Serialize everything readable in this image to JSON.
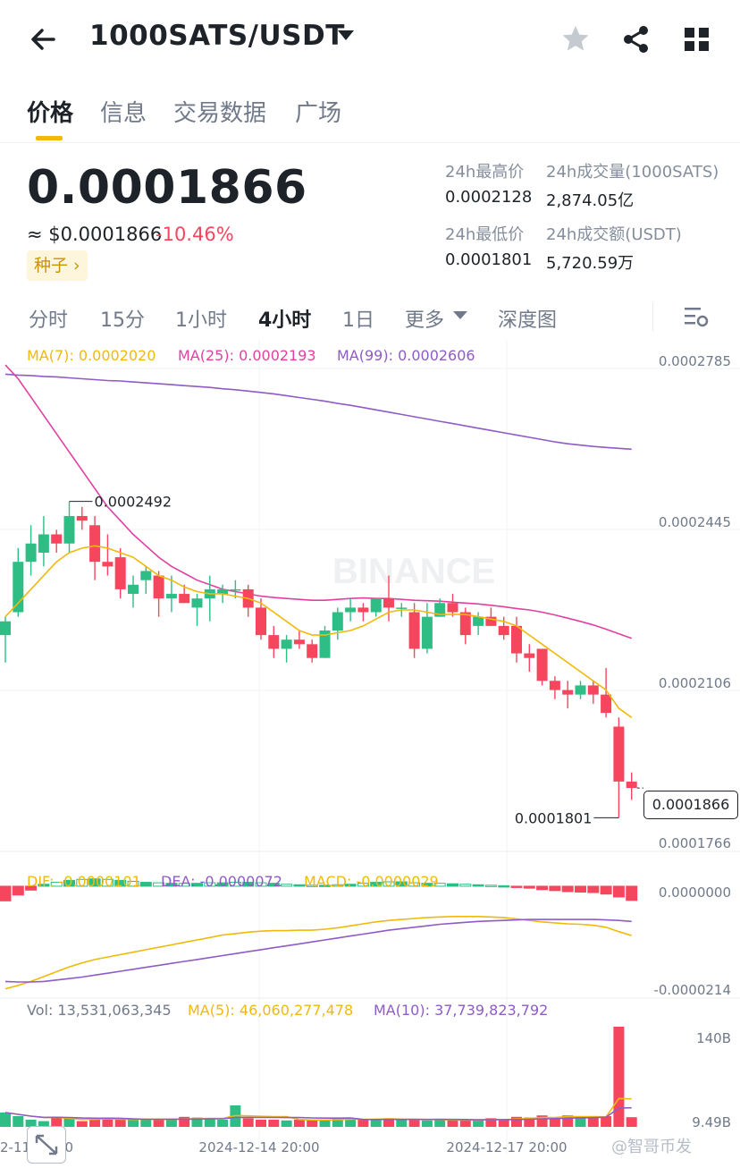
{
  "header": {
    "pair": "1000SATS/USDT"
  },
  "tabs": [
    "价格",
    "信息",
    "交易数据",
    "广场"
  ],
  "price": {
    "last": "0.0001866",
    "usd": "≈ $0.0001866",
    "change": "-10.46%",
    "tag": "种子 ›"
  },
  "stats": {
    "high_label": "24h最高价",
    "high": "0.0002128",
    "low_label": "24h最低价",
    "low": "0.0001801",
    "vol_base_label": "24h成交量(1000SATS)",
    "vol_base": "2,874.05亿",
    "vol_quote_label": "24h成交额(USDT)",
    "vol_quote": "5,720.59万"
  },
  "intervals": [
    "分时",
    "15分",
    "1小时",
    "4小时",
    "1日",
    "更多",
    "深度图"
  ],
  "active_interval": "4小时",
  "legends": {
    "ma7": "MA(7): 0.0002020",
    "ma25": "MA(25): 0.0002193",
    "ma99": "MA(99): 0.0002606",
    "dif": "DIF: -0.0000101",
    "dea": "DEA: -0.0000072",
    "macd": "MACD: -0.0000029",
    "vol": "Vol: 13,531,063,345",
    "vol_ma5": "MA(5): 46,060,277,478",
    "vol_ma10": "MA(10): 37,739,823,792"
  },
  "axis": {
    "price_ticks": [
      "0.0002785",
      "0.0002445",
      "0.0002106",
      "0.0001766"
    ],
    "macd_ticks": [
      "0.0000000",
      "-0.0000214"
    ],
    "vol_ticks": [
      "140B",
      "9.49B"
    ],
    "time_labels": [
      "2-11 20:00",
      "2024-12-14 20:00",
      "2024-12-17 20:00"
    ],
    "hi_marker": "0.0002492",
    "lo_marker": "0.0001801",
    "current": "0.0001866"
  },
  "watermark_text": "BINANCE",
  "corner_watermark": "@智哥币发",
  "colors": {
    "up": "#2ebd85",
    "down": "#f6465d",
    "ma7": "#f0b90b",
    "ma25": "#e040a0",
    "ma99": "#8e5bc7",
    "accent": "#f0b90b"
  },
  "chart_data": {
    "type": "candlestick",
    "interval": "4h",
    "candles": [
      {
        "o": 0.00022,
        "h": 0.000224,
        "l": 0.000214,
        "c": 0.000223
      },
      {
        "o": 0.000225,
        "h": 0.000239,
        "l": 0.000224,
        "c": 0.000236
      },
      {
        "o": 0.000236,
        "h": 0.000244,
        "l": 0.000233,
        "c": 0.00024
      },
      {
        "o": 0.000238,
        "h": 0.000246,
        "l": 0.000235,
        "c": 0.000242
      },
      {
        "o": 0.000242,
        "h": 0.000243,
        "l": 0.000238,
        "c": 0.00024
      },
      {
        "o": 0.00024,
        "h": 0.0002492,
        "l": 0.000238,
        "c": 0.000246
      },
      {
        "o": 0.000246,
        "h": 0.000248,
        "l": 0.000243,
        "c": 0.000245
      },
      {
        "o": 0.000244,
        "h": 0.000246,
        "l": 0.000232,
        "c": 0.000236
      },
      {
        "o": 0.000236,
        "h": 0.000242,
        "l": 0.000233,
        "c": 0.000235
      },
      {
        "o": 0.000237,
        "h": 0.000239,
        "l": 0.000228,
        "c": 0.00023
      },
      {
        "o": 0.000229,
        "h": 0.000233,
        "l": 0.000226,
        "c": 0.000231
      },
      {
        "o": 0.000232,
        "h": 0.000235,
        "l": 0.000229,
        "c": 0.000234
      },
      {
        "o": 0.000233,
        "h": 0.000234,
        "l": 0.000224,
        "c": 0.000228
      },
      {
        "o": 0.000228,
        "h": 0.000233,
        "l": 0.000225,
        "c": 0.000229
      },
      {
        "o": 0.000229,
        "h": 0.000231,
        "l": 0.000227,
        "c": 0.000227
      },
      {
        "o": 0.000226,
        "h": 0.000229,
        "l": 0.000222,
        "c": 0.000228
      },
      {
        "o": 0.000228,
        "h": 0.000233,
        "l": 0.000223,
        "c": 0.00023
      },
      {
        "o": 0.000229,
        "h": 0.000231,
        "l": 0.000227,
        "c": 0.00023
      },
      {
        "o": 0.00023,
        "h": 0.000232,
        "l": 0.000228,
        "c": 0.00023
      },
      {
        "o": 0.00023,
        "h": 0.000231,
        "l": 0.000224,
        "c": 0.000226
      },
      {
        "o": 0.000226,
        "h": 0.000228,
        "l": 0.000219,
        "c": 0.00022
      },
      {
        "o": 0.00022,
        "h": 0.000222,
        "l": 0.000215,
        "c": 0.000217
      },
      {
        "o": 0.000217,
        "h": 0.00022,
        "l": 0.000214,
        "c": 0.000219
      },
      {
        "o": 0.000219,
        "h": 0.000221,
        "l": 0.000217,
        "c": 0.000218
      },
      {
        "o": 0.000218,
        "h": 0.000219,
        "l": 0.000214,
        "c": 0.000215
      },
      {
        "o": 0.000215,
        "h": 0.000222,
        "l": 0.000215,
        "c": 0.000221
      },
      {
        "o": 0.000221,
        "h": 0.000226,
        "l": 0.000219,
        "c": 0.000225
      },
      {
        "o": 0.000225,
        "h": 0.000228,
        "l": 0.000223,
        "c": 0.000226
      },
      {
        "o": 0.000226,
        "h": 0.000227,
        "l": 0.000223,
        "c": 0.000225
      },
      {
        "o": 0.000225,
        "h": 0.000228,
        "l": 0.000224,
        "c": 0.000228
      },
      {
        "o": 0.000228,
        "h": 0.000233,
        "l": 0.000223,
        "c": 0.000226
      },
      {
        "o": 0.000226,
        "h": 0.000227,
        "l": 0.000224,
        "c": 0.000226
      },
      {
        "o": 0.000225,
        "h": 0.000227,
        "l": 0.000215,
        "c": 0.000217
      },
      {
        "o": 0.000217,
        "h": 0.000227,
        "l": 0.000216,
        "c": 0.000224
      },
      {
        "o": 0.000224,
        "h": 0.000228,
        "l": 0.000224,
        "c": 0.000227
      },
      {
        "o": 0.000227,
        "h": 0.000229,
        "l": 0.000224,
        "c": 0.000225
      },
      {
        "o": 0.000225,
        "h": 0.000226,
        "l": 0.000218,
        "c": 0.00022
      },
      {
        "o": 0.000222,
        "h": 0.000225,
        "l": 0.00022,
        "c": 0.000224
      },
      {
        "o": 0.000224,
        "h": 0.000226,
        "l": 0.000222,
        "c": 0.000222
      },
      {
        "o": 0.000222,
        "h": 0.000224,
        "l": 0.000219,
        "c": 0.00022
      },
      {
        "o": 0.000222,
        "h": 0.000224,
        "l": 0.000214,
        "c": 0.000216
      },
      {
        "o": 0.000216,
        "h": 0.000218,
        "l": 0.000212,
        "c": 0.000215
      },
      {
        "o": 0.000217,
        "h": 0.000217,
        "l": 0.000209,
        "c": 0.00021
      },
      {
        "o": 0.00021,
        "h": 0.000211,
        "l": 0.000206,
        "c": 0.000208
      },
      {
        "o": 0.000208,
        "h": 0.00021,
        "l": 0.000204,
        "c": 0.000207
      },
      {
        "o": 0.000207,
        "h": 0.00021,
        "l": 0.000206,
        "c": 0.000209
      },
      {
        "o": 0.000209,
        "h": 0.00021,
        "l": 0.000205,
        "c": 0.000207
      },
      {
        "o": 0.000207,
        "h": 0.0002128,
        "l": 0.000202,
        "c": 0.000203
      },
      {
        "o": 0.0002,
        "h": 0.000202,
        "l": 0.0001801,
        "c": 0.000188
      },
      {
        "o": 0.000188,
        "h": 0.00019,
        "l": 0.000184,
        "c": 0.0001866
      }
    ],
    "ma7": [
      0.000224,
      0.000227,
      0.00023,
      0.000233,
      0.000236,
      0.000238,
      0.000239,
      0.0002395,
      0.000239,
      0.000238,
      0.000237,
      0.000235,
      0.000233,
      0.000232,
      0.0002305,
      0.0002295,
      0.000229,
      0.000229,
      0.0002285,
      0.000228,
      0.000227,
      0.000225,
      0.000223,
      0.000221,
      0.00022,
      0.00022,
      0.0002205,
      0.000221,
      0.000222,
      0.0002235,
      0.000225,
      0.0002255,
      0.0002255,
      0.000225,
      0.0002245,
      0.0002245,
      0.0002245,
      0.000224,
      0.0002235,
      0.000223,
      0.000222,
      0.00022,
      0.000218,
      0.000216,
      0.000214,
      0.000212,
      0.00021,
      0.000208,
      0.000204,
      0.000202
    ],
    "ma25": [
      0.000279,
      0.000276,
      0.000272,
      0.000268,
      0.000264,
      0.00026,
      0.000256,
      0.000252,
      0.000248,
      0.000245,
      0.000242,
      0.0002395,
      0.000237,
      0.000235,
      0.0002335,
      0.000232,
      0.000231,
      0.00023,
      0.0002295,
      0.000229,
      0.0002285,
      0.0002282,
      0.000228,
      0.0002278,
      0.0002276,
      0.0002276,
      0.0002278,
      0.000228,
      0.0002281,
      0.000228,
      0.000228,
      0.0002278,
      0.0002276,
      0.0002275,
      0.0002274,
      0.0002272,
      0.000227,
      0.0002268,
      0.0002265,
      0.0002262,
      0.0002258,
      0.0002255,
      0.000225,
      0.0002244,
      0.0002237,
      0.000223,
      0.0002222,
      0.0002213,
      0.0002203,
      0.0002193
    ],
    "ma99": [
      0.000277,
      0.0002768,
      0.0002767,
      0.0002765,
      0.0002764,
      0.0002762,
      0.000276,
      0.0002758,
      0.0002756,
      0.0002755,
      0.0002753,
      0.0002751,
      0.0002749,
      0.0002747,
      0.0002745,
      0.0002743,
      0.0002741,
      0.0002738,
      0.0002736,
      0.0002733,
      0.000273,
      0.0002727,
      0.0002723,
      0.0002719,
      0.0002715,
      0.0002711,
      0.0002706,
      0.0002702,
      0.0002697,
      0.0002692,
      0.0002687,
      0.0002682,
      0.0002677,
      0.0002672,
      0.0002667,
      0.0002662,
      0.0002657,
      0.0002652,
      0.0002647,
      0.0002642,
      0.0002637,
      0.0002632,
      0.0002627,
      0.0002622,
      0.0002618,
      0.0002615,
      0.0002612,
      0.000261,
      0.0002608,
      0.0002606
    ],
    "volume_b": [
      20,
      15,
      10,
      8,
      14,
      12,
      8,
      10,
      12,
      11,
      11,
      10,
      10,
      10,
      14,
      13,
      12,
      10,
      30,
      12,
      10,
      10,
      9,
      10,
      9,
      10,
      12,
      12,
      10,
      10,
      12,
      10,
      10,
      9,
      10,
      9,
      10,
      9,
      12,
      10,
      14,
      13,
      16,
      12,
      16,
      14,
      13,
      15,
      140,
      13.5
    ],
    "macd_hist": [
      -3e-06,
      -1.8e-06,
      -8e-07,
      4e-07,
      8e-07,
      1.2e-06,
      1.4e-06,
      1.5e-06,
      1.4e-06,
      1.2e-06,
      1e-06,
      8e-07,
      7e-07,
      6e-07,
      6e-07,
      6e-07,
      7e-07,
      7e-07,
      8e-07,
      8e-07,
      7e-07,
      6e-07,
      4e-07,
      3e-07,
      2e-07,
      2e-07,
      3e-07,
      4e-07,
      6e-07,
      8e-07,
      9e-07,
      9e-07,
      7e-07,
      6e-07,
      6e-07,
      5e-07,
      4e-07,
      3e-07,
      2e-07,
      1e-07,
      -2e-07,
      -4e-07,
      -7e-07,
      -9e-07,
      -1.1e-06,
      -1.2e-06,
      -1.3e-06,
      -1.6e-06,
      -2.2e-06,
      -2.9e-06
    ],
    "dif": [
      -2.1e-05,
      -2.03e-05,
      -1.95e-05,
      -1.85e-05,
      -1.75e-05,
      -1.65e-05,
      -1.57e-05,
      -1.5e-05,
      -1.45e-05,
      -1.4e-05,
      -1.35e-05,
      -1.3e-05,
      -1.25e-05,
      -1.2e-05,
      -1.15e-05,
      -1.1e-05,
      -1.05e-05,
      -1e-05,
      -9.7e-06,
      -9.4e-06,
      -9.2e-06,
      -9.1e-06,
      -9.1e-06,
      -9e-06,
      -9e-06,
      -8.8e-06,
      -8.5e-06,
      -8.1e-06,
      -7.7e-06,
      -7.3e-06,
      -7e-06,
      -6.8e-06,
      -6.6e-06,
      -6.4e-06,
      -6.3e-06,
      -6.2e-06,
      -6.2e-06,
      -6.2e-06,
      -6.3e-06,
      -6.4e-06,
      -6.7e-06,
      -7e-06,
      -7.3e-06,
      -7.5e-06,
      -7.7e-06,
      -7.8e-06,
      -8e-06,
      -8.4e-06,
      -9.3e-06,
      -1.01e-05
    ],
    "dea": [
      -1.95e-05,
      -1.96e-05,
      -1.96e-05,
      -1.95e-05,
      -1.92e-05,
      -1.89e-05,
      -1.86e-05,
      -1.82e-05,
      -1.78e-05,
      -1.74e-05,
      -1.7e-05,
      -1.66e-05,
      -1.62e-05,
      -1.58e-05,
      -1.54e-05,
      -1.5e-05,
      -1.46e-05,
      -1.42e-05,
      -1.38e-05,
      -1.34e-05,
      -1.3e-05,
      -1.26e-05,
      -1.22e-05,
      -1.18e-05,
      -1.14e-05,
      -1.1e-05,
      -1.06e-05,
      -1.02e-05,
      -9.8e-06,
      -9.4e-06,
      -9e-06,
      -8.7e-06,
      -8.4e-06,
      -8.1e-06,
      -7.8e-06,
      -7.6e-06,
      -7.4e-06,
      -7.2e-06,
      -7.1e-06,
      -7e-06,
      -6.9e-06,
      -6.8e-06,
      -6.8e-06,
      -6.8e-06,
      -6.8e-06,
      -6.8e-06,
      -6.8e-06,
      -6.9e-06,
      -7e-06,
      -7.2e-06
    ],
    "price_range": [
      0.0001745,
      0.00028
    ],
    "macd_range": [
      -2.18e-05,
      2e-06
    ],
    "volume_range_b": [
      0,
      145
    ]
  }
}
